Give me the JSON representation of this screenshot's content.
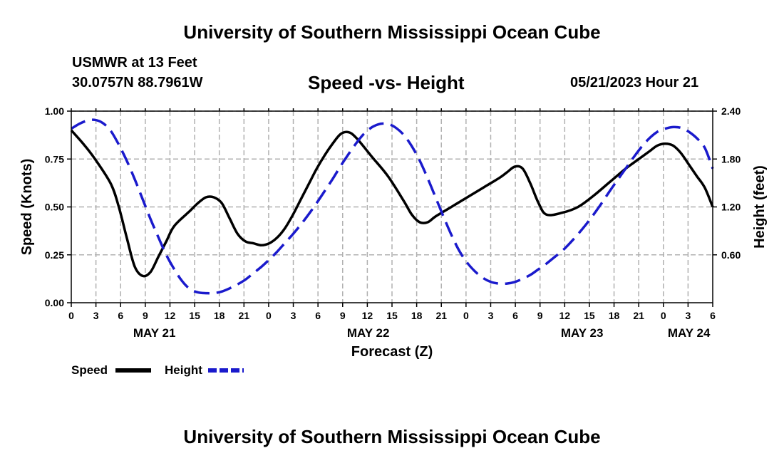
{
  "header": {
    "title": "University of Southern Mississippi Ocean Cube",
    "station": "USMWR at 13 Feet",
    "coords": "30.0757N  88.7961W",
    "chart_title": "Speed -vs- Height",
    "run_time": "05/21/2023 Hour 21"
  },
  "footer": {
    "title": "University of Southern Mississippi Ocean Cube"
  },
  "colors": {
    "speed": "#000000",
    "height": "#1a1acc",
    "grid": "#b0b0b0"
  },
  "chart_data": {
    "type": "line",
    "title": "Speed -vs- Height",
    "xlabel": "Forecast (Z)",
    "ylabel": "Speed (Knots)",
    "y2label": "Height (feet)",
    "x_range_hours": [
      0,
      81
    ],
    "x_tick_labels": [
      "0",
      "3",
      "6",
      "9",
      "12",
      "15",
      "18",
      "21",
      "0",
      "3",
      "6",
      "9",
      "12",
      "15",
      "18",
      "21",
      "0",
      "3",
      "6",
      "9",
      "12",
      "15",
      "18",
      "21",
      "0",
      "3",
      "6"
    ],
    "date_labels": [
      {
        "label": "MAY 21",
        "hour": 10.5
      },
      {
        "label": "MAY 22",
        "hour": 37.5
      },
      {
        "label": "MAY 23",
        "hour": 64.5
      },
      {
        "label": "MAY 24",
        "hour": 78
      }
    ],
    "ylim": [
      0,
      1.0
    ],
    "y_ticks": [
      "0.00",
      "0.25",
      "0.50",
      "0.75",
      "1.00"
    ],
    "y2lim": [
      0,
      2.4
    ],
    "y2_ticks": [
      "0.60",
      "1.20",
      "1.80",
      "2.40"
    ],
    "grid": true,
    "legend_position": "bottom-left",
    "series": [
      {
        "name": "Speed",
        "axis": "left",
        "style": "solid",
        "x": [
          0,
          1.5,
          3,
          5,
          6,
          7,
          8,
          9,
          10,
          11,
          12,
          13,
          15,
          16,
          17,
          18,
          19,
          20,
          21,
          22,
          23,
          24,
          25,
          26,
          27,
          28,
          29,
          30,
          31,
          32,
          33,
          34,
          35,
          36,
          38,
          40,
          42,
          43,
          44,
          45,
          46,
          48,
          50,
          52,
          54,
          55,
          56,
          57,
          58,
          59,
          60,
          62,
          64,
          66,
          68,
          70,
          71,
          72,
          73,
          74,
          75,
          76,
          77,
          78,
          79,
          80,
          81
        ],
        "values": [
          0.9,
          0.83,
          0.75,
          0.62,
          0.5,
          0.34,
          0.19,
          0.14,
          0.16,
          0.24,
          0.32,
          0.4,
          0.48,
          0.52,
          0.55,
          0.55,
          0.52,
          0.44,
          0.36,
          0.32,
          0.31,
          0.3,
          0.31,
          0.34,
          0.39,
          0.46,
          0.54,
          0.62,
          0.7,
          0.77,
          0.83,
          0.88,
          0.89,
          0.86,
          0.76,
          0.66,
          0.53,
          0.46,
          0.42,
          0.42,
          0.45,
          0.5,
          0.55,
          0.6,
          0.65,
          0.68,
          0.71,
          0.7,
          0.62,
          0.52,
          0.46,
          0.47,
          0.5,
          0.56,
          0.63,
          0.7,
          0.73,
          0.76,
          0.79,
          0.82,
          0.83,
          0.82,
          0.78,
          0.72,
          0.66,
          0.6,
          0.5
        ]
      },
      {
        "name": "Height",
        "axis": "right",
        "style": "dashed",
        "x": [
          0,
          1,
          2,
          3,
          4,
          5,
          6,
          7,
          8,
          9,
          10,
          11,
          12,
          13,
          14,
          15,
          16,
          17,
          18,
          19,
          20,
          21,
          22,
          23,
          24,
          25,
          26,
          27,
          28,
          29,
          30,
          31,
          32,
          33,
          34,
          35,
          36,
          37,
          38,
          39,
          40,
          41,
          42,
          43,
          44,
          45,
          46,
          47,
          48,
          49,
          50,
          51,
          52,
          53,
          54,
          55,
          56,
          57,
          58,
          59,
          60,
          61,
          62,
          63,
          64,
          65,
          66,
          67,
          68,
          69,
          70,
          71,
          72,
          73,
          74,
          75,
          76,
          77,
          78,
          79,
          80,
          81
        ],
        "values": [
          2.18,
          2.24,
          2.28,
          2.29,
          2.25,
          2.15,
          1.98,
          1.78,
          1.55,
          1.3,
          1.05,
          0.82,
          0.6,
          0.42,
          0.27,
          0.17,
          0.13,
          0.12,
          0.12,
          0.14,
          0.18,
          0.23,
          0.29,
          0.37,
          0.45,
          0.54,
          0.64,
          0.75,
          0.86,
          0.98,
          1.11,
          1.25,
          1.4,
          1.55,
          1.71,
          1.86,
          2.0,
          2.12,
          2.2,
          2.24,
          2.24,
          2.19,
          2.1,
          1.96,
          1.78,
          1.56,
          1.32,
          1.08,
          0.85,
          0.65,
          0.5,
          0.39,
          0.31,
          0.26,
          0.24,
          0.24,
          0.26,
          0.3,
          0.35,
          0.42,
          0.49,
          0.57,
          0.65,
          0.75,
          0.86,
          0.98,
          1.11,
          1.25,
          1.4,
          1.54,
          1.68,
          1.82,
          1.95,
          2.06,
          2.14,
          2.18,
          2.2,
          2.19,
          2.14,
          2.06,
          1.94,
          1.68
        ]
      }
    ]
  }
}
